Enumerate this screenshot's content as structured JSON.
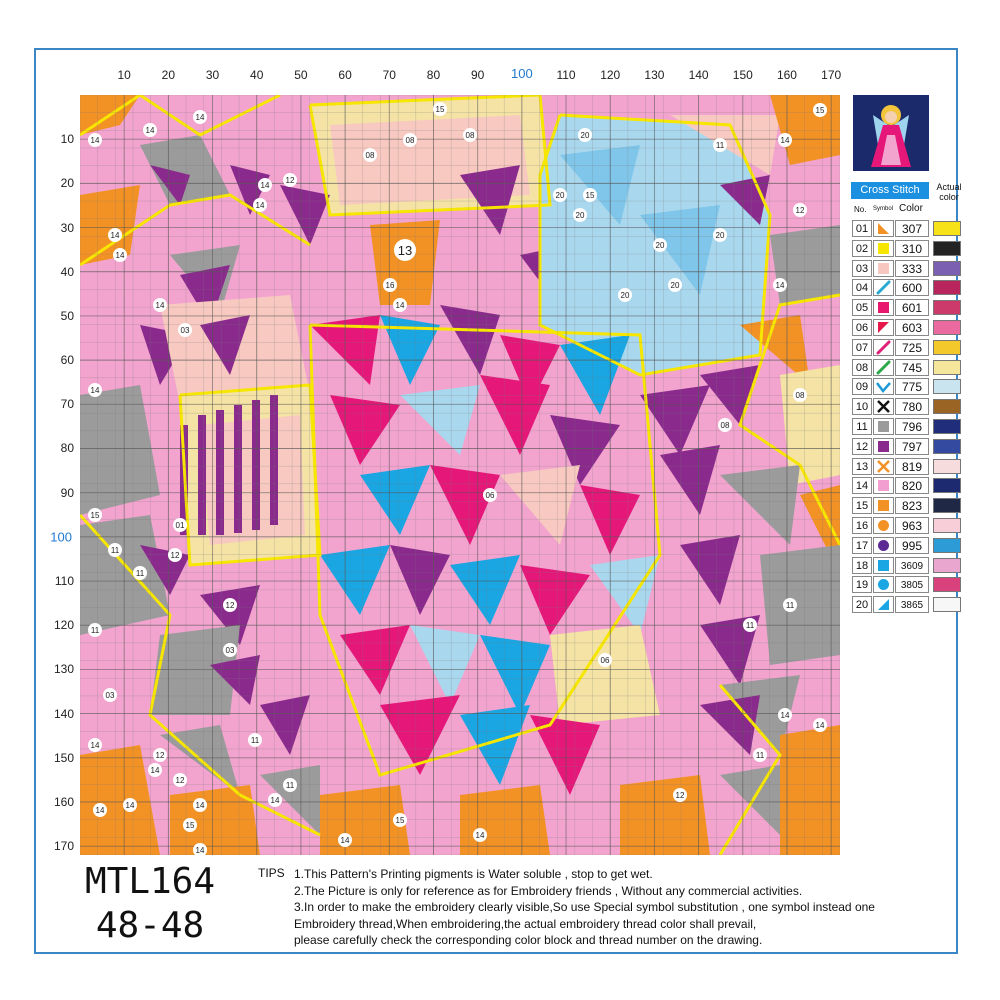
{
  "chart_title": "",
  "x_axis": {
    "ticks": [
      "10",
      "20",
      "30",
      "40",
      "50",
      "60",
      "70",
      "80",
      "90",
      "100",
      "110",
      "120",
      "130",
      "140",
      "150",
      "160",
      "170"
    ]
  },
  "y_axis": {
    "ticks": [
      "10",
      "20",
      "30",
      "40",
      "50",
      "60",
      "70",
      "80",
      "90",
      "100",
      "110",
      "120",
      "130",
      "140",
      "150",
      "160",
      "170"
    ]
  },
  "grid_size": 172,
  "legend": {
    "title": "Cross Stitch",
    "actual_label": "Actual color",
    "col_no": "No.",
    "col_symbol": "Symbol",
    "col_color": "Color",
    "rows": [
      {
        "no": "01",
        "symbol": "triangle-bl",
        "sym_color": "#f39224",
        "code": "307",
        "actual": "#f7e21a"
      },
      {
        "no": "02",
        "symbol": "square",
        "sym_color": "#f6e600",
        "code": "310",
        "actual": "#232323"
      },
      {
        "no": "03",
        "symbol": "square",
        "sym_color": "#f8c8c0",
        "code": "333",
        "actual": "#7b5fb0"
      },
      {
        "no": "04",
        "symbol": "slash",
        "sym_color": "#29a9cf",
        "code": "600",
        "actual": "#b8255d"
      },
      {
        "no": "05",
        "symbol": "square",
        "sym_color": "#e8186f",
        "code": "601",
        "actual": "#cc3a6c"
      },
      {
        "no": "06",
        "symbol": "triangle-tl",
        "sym_color": "#e8174a",
        "code": "603",
        "actual": "#ea6aa0"
      },
      {
        "no": "07",
        "symbol": "slash",
        "sym_color": "#e21f78",
        "code": "725",
        "actual": "#f3c82a"
      },
      {
        "no": "08",
        "symbol": "slash",
        "sym_color": "#2aa84a",
        "code": "745",
        "actual": "#f4e69a"
      },
      {
        "no": "09",
        "symbol": "check",
        "sym_color": "#1d9ad6",
        "code": "775",
        "actual": "#c9e3ef"
      },
      {
        "no": "10",
        "symbol": "cross",
        "sym_color": "#111111",
        "code": "780",
        "actual": "#9a6424"
      },
      {
        "no": "11",
        "symbol": "square",
        "sym_color": "#9b9b9b",
        "code": "796",
        "actual": "#1f2d7a"
      },
      {
        "no": "12",
        "symbol": "square",
        "sym_color": "#8a2a8c",
        "code": "797",
        "actual": "#344aa0"
      },
      {
        "no": "13",
        "symbol": "cross",
        "sym_color": "#f39224",
        "code": "819",
        "actual": "#f6dcdc"
      },
      {
        "no": "14",
        "symbol": "square",
        "sym_color": "#f29ed0",
        "code": "820",
        "actual": "#1e2a70"
      },
      {
        "no": "15",
        "symbol": "square",
        "sym_color": "#f39224",
        "code": "823",
        "actual": "#1f2844"
      },
      {
        "no": "16",
        "symbol": "circle",
        "sym_color": "#f39224",
        "code": "963",
        "actual": "#f8cfd8"
      },
      {
        "no": "17",
        "symbol": "circle",
        "sym_color": "#5b2a95",
        "code": "995",
        "actual": "#2d9bd6"
      },
      {
        "no": "18",
        "symbol": "square",
        "sym_color": "#19a6e2",
        "code": "3609",
        "actual": "#e9a7cf"
      },
      {
        "no": "19",
        "symbol": "circle",
        "sym_color": "#19a6e2",
        "code": "3805",
        "actual": "#d9417c"
      },
      {
        "no": "20",
        "symbol": "triangle-br",
        "sym_color": "#19a6e2",
        "code": "3865",
        "actual": "#f7f7f7"
      }
    ]
  },
  "model": {
    "line1": "MTL164",
    "line2": "48-48"
  },
  "tips": {
    "label": "TIPS",
    "lines": [
      "1.This Pattern's Printing pigments is Water soluble , stop to get wet.",
      "2.The Picture is only for reference as for Embroidery friends , Without any commercial activities.",
      "3.In order to make the embroidery clearly visible,So use Special symbol substitution , one symbol instead one",
      "Embroidery thread,When embroidering,the actual embroidery thread color shall prevail,",
      "please carefully check the corresponding color block and thread number on the drawing."
    ]
  },
  "region_labels": [
    "14",
    "14",
    "14",
    "15",
    "14",
    "15",
    "08",
    "08",
    "08",
    "20",
    "11",
    "14",
    "12",
    "20",
    "20",
    "12",
    "14",
    "13",
    "20",
    "20",
    "14",
    "14",
    "16",
    "20",
    "20",
    "14",
    "14",
    "03",
    "14",
    "14",
    "08",
    "08",
    "06",
    "15",
    "01",
    "11",
    "12",
    "11",
    "12",
    "11",
    "03",
    "11",
    "03",
    "14",
    "14",
    "12",
    "06",
    "14",
    "11",
    "12",
    "11",
    "14",
    "14",
    "15",
    "12",
    "11",
    "14",
    "11",
    "14",
    "14",
    "14",
    "15",
    "15",
    "14",
    "14"
  ],
  "palette": {
    "pink": "#f2a4cf",
    "lightpink": "#f8c9c0",
    "orange": "#f39224",
    "yellow": "#f6e600",
    "purple": "#8a2a8c",
    "gray": "#9b9b9b",
    "blue": "#19a6e2",
    "magenta": "#e5187a",
    "lightblue": "#a9d8ee",
    "cream": "#f4e3a5"
  }
}
